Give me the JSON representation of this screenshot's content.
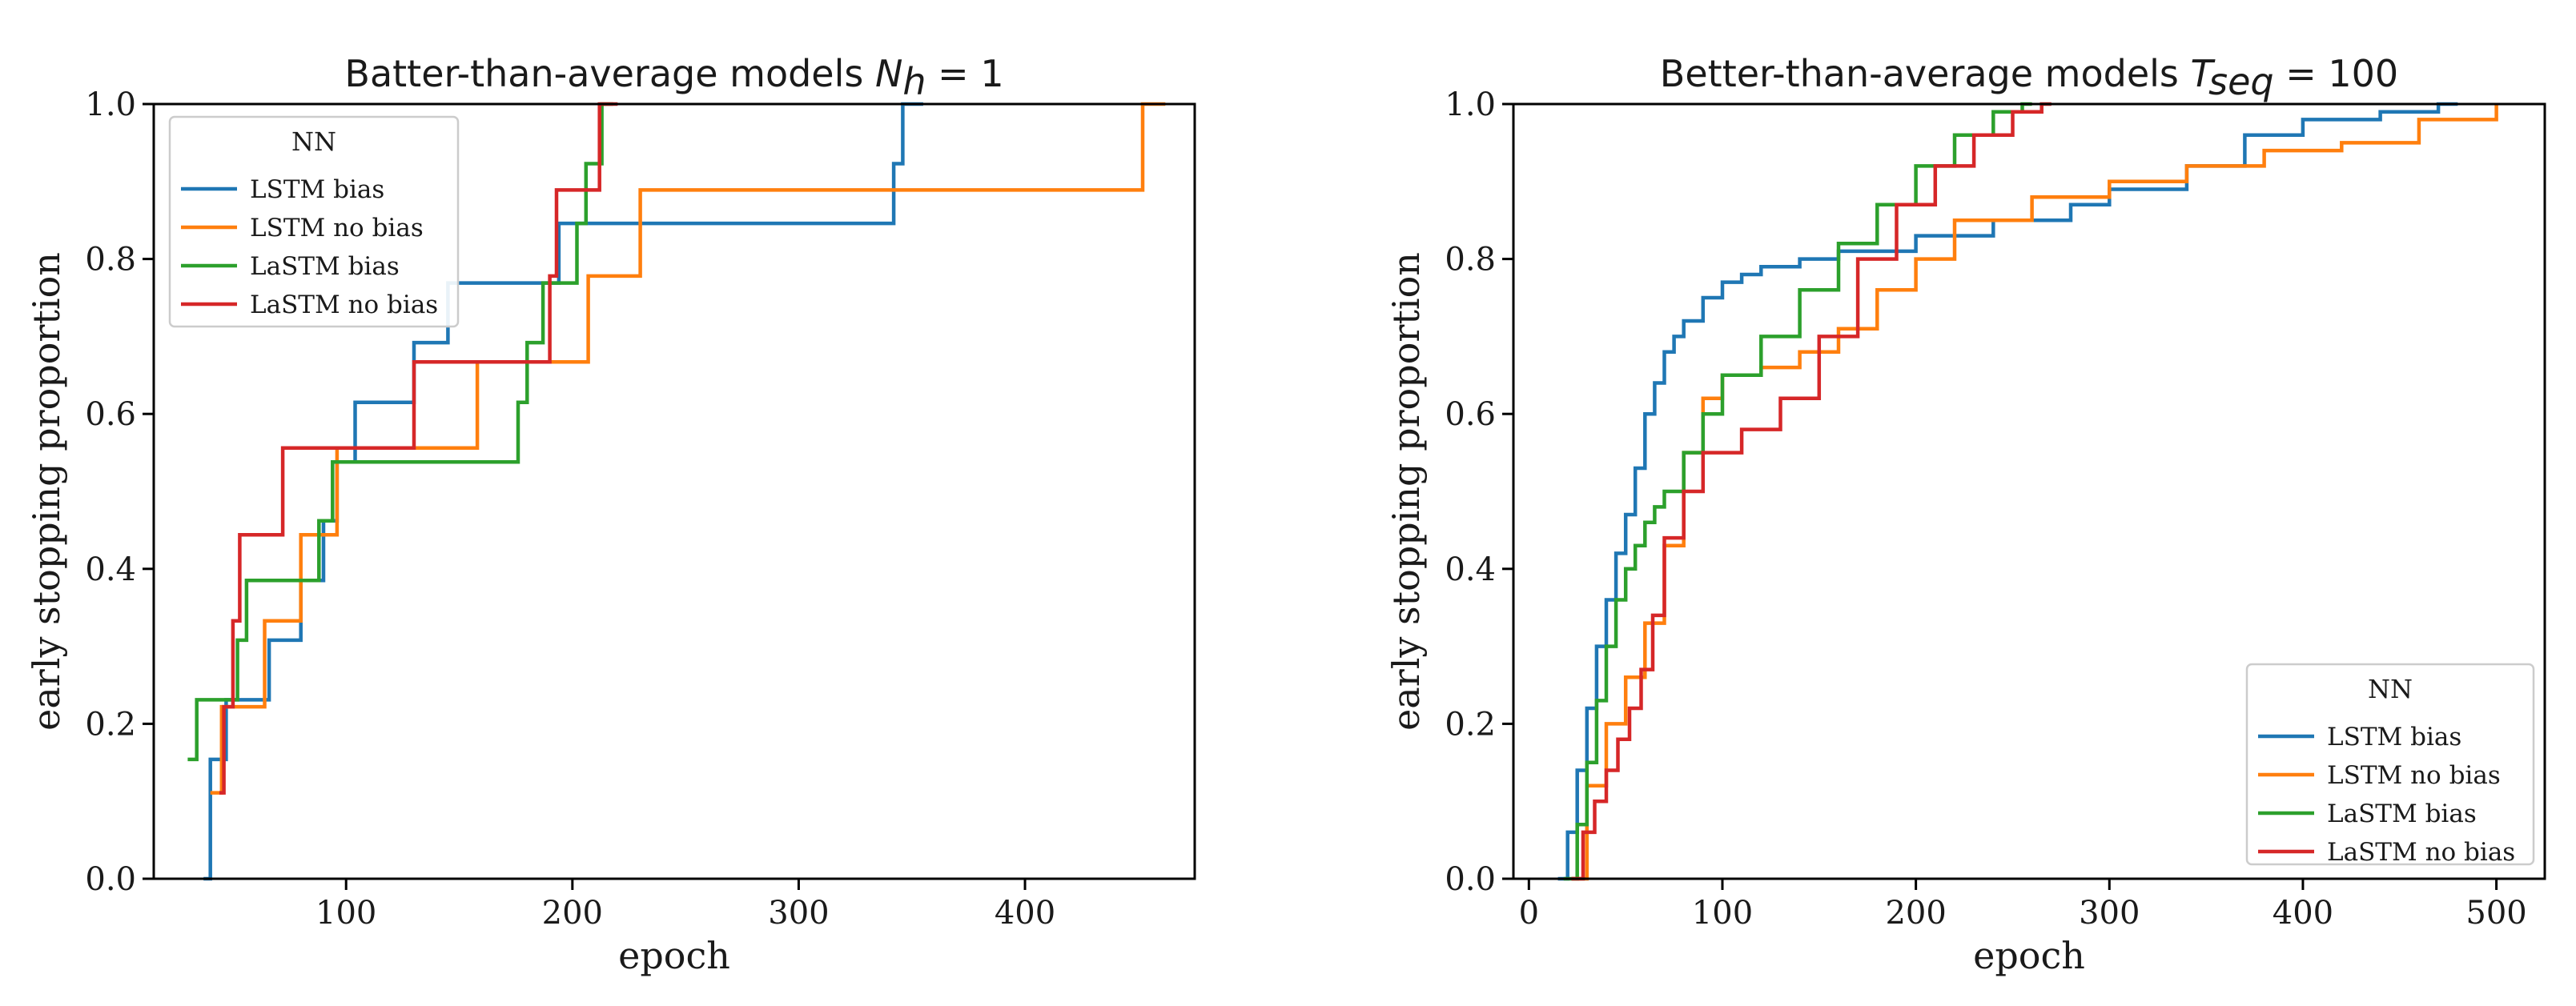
{
  "chart_data": [
    {
      "type": "line",
      "step": true,
      "title": "Batter-than-average models",
      "title_math": {
        "symbol": "N",
        "subscript": "h",
        "rhs": "= 1"
      },
      "xlabel": "epoch",
      "ylabel": "early stopping proportion",
      "xlim": [
        15,
        475
      ],
      "ylim": [
        0,
        1.0
      ],
      "xticks": [
        100,
        200,
        300,
        400
      ],
      "yticks": [
        0.0,
        0.2,
        0.4,
        0.6,
        0.8,
        1.0
      ],
      "legend": {
        "title": "NN",
        "position": "upper-left"
      },
      "series": [
        {
          "name": "LSTM bias",
          "color": "#1f77b4",
          "x": [
            37,
            40,
            47,
            56,
            66,
            80,
            90,
            96,
            104,
            130,
            145,
            172,
            194,
            342,
            346,
            355
          ],
          "y": [
            0.0,
            0.154,
            0.231,
            0.231,
            0.308,
            0.385,
            0.462,
            0.538,
            0.615,
            0.692,
            0.769,
            0.769,
            0.846,
            0.923,
            1.0,
            1.0
          ]
        },
        {
          "name": "LSTM no bias",
          "color": "#ff7f0e",
          "x": [
            40,
            45,
            52,
            64,
            80,
            90,
            96,
            158,
            207,
            230,
            452,
            462
          ],
          "y": [
            0.111,
            0.222,
            0.222,
            0.333,
            0.444,
            0.444,
            0.556,
            0.667,
            0.778,
            0.889,
            1.0,
            1.0
          ]
        },
        {
          "name": "LaSTM bias",
          "color": "#2ca02c",
          "x": [
            30,
            34,
            52,
            56,
            88,
            94,
            176,
            180,
            187,
            202,
            206,
            213,
            218
          ],
          "y": [
            0.154,
            0.231,
            0.308,
            0.385,
            0.462,
            0.538,
            0.615,
            0.692,
            0.769,
            0.846,
            0.923,
            1.0,
            1.0
          ]
        },
        {
          "name": "LaSTM no bias",
          "color": "#d62728",
          "x": [
            44,
            46,
            50,
            53,
            72,
            130,
            190,
            193,
            210,
            212,
            215,
            220
          ],
          "y": [
            0.111,
            0.222,
            0.333,
            0.444,
            0.556,
            0.667,
            0.778,
            0.889,
            0.889,
            1.0,
            1.0,
            1.0
          ]
        }
      ]
    },
    {
      "type": "line",
      "step": true,
      "title": "Better-than-average models",
      "title_math": {
        "symbol": "T",
        "subscript": "seq",
        "rhs": "= 100"
      },
      "xlabel": "epoch",
      "ylabel": "early stopping proportion",
      "xlim": [
        -8,
        525
      ],
      "ylim": [
        0,
        1.0
      ],
      "xticks": [
        0,
        100,
        200,
        300,
        400,
        500
      ],
      "yticks": [
        0.0,
        0.2,
        0.4,
        0.6,
        0.8,
        1.0
      ],
      "legend": {
        "title": "NN",
        "position": "lower-right"
      },
      "series": [
        {
          "name": "LSTM bias",
          "color": "#1f77b4",
          "x": [
            15,
            20,
            25,
            30,
            35,
            40,
            45,
            50,
            55,
            60,
            65,
            70,
            75,
            80,
            90,
            100,
            110,
            120,
            140,
            160,
            200,
            240,
            280,
            300,
            340,
            370,
            400,
            440,
            470,
            480
          ],
          "y": [
            0.0,
            0.06,
            0.14,
            0.22,
            0.3,
            0.36,
            0.42,
            0.47,
            0.53,
            0.6,
            0.64,
            0.68,
            0.7,
            0.72,
            0.75,
            0.77,
            0.78,
            0.79,
            0.8,
            0.81,
            0.83,
            0.85,
            0.87,
            0.89,
            0.92,
            0.96,
            0.98,
            0.99,
            1.0,
            1.0
          ]
        },
        {
          "name": "LSTM no bias",
          "color": "#ff7f0e",
          "x": [
            22,
            30,
            40,
            50,
            60,
            70,
            80,
            90,
            100,
            120,
            140,
            160,
            180,
            200,
            220,
            260,
            300,
            340,
            380,
            420,
            460,
            500
          ],
          "y": [
            0.0,
            0.12,
            0.2,
            0.26,
            0.33,
            0.43,
            0.55,
            0.62,
            0.65,
            0.66,
            0.68,
            0.71,
            0.76,
            0.8,
            0.85,
            0.88,
            0.9,
            0.92,
            0.94,
            0.95,
            0.98,
            1.0
          ]
        },
        {
          "name": "LaSTM bias",
          "color": "#2ca02c",
          "x": [
            18,
            25,
            30,
            35,
            40,
            45,
            50,
            55,
            60,
            65,
            70,
            80,
            90,
            100,
            120,
            140,
            160,
            180,
            200,
            220,
            240,
            255,
            260
          ],
          "y": [
            0.0,
            0.07,
            0.15,
            0.23,
            0.3,
            0.36,
            0.4,
            0.43,
            0.46,
            0.48,
            0.5,
            0.55,
            0.6,
            0.65,
            0.7,
            0.76,
            0.82,
            0.87,
            0.92,
            0.96,
            0.99,
            1.0,
            1.0
          ]
        },
        {
          "name": "LaSTM no bias",
          "color": "#d62728",
          "x": [
            22,
            28,
            34,
            40,
            46,
            52,
            58,
            64,
            70,
            80,
            90,
            110,
            130,
            150,
            170,
            190,
            210,
            230,
            250,
            265,
            270
          ],
          "y": [
            0.0,
            0.06,
            0.1,
            0.14,
            0.18,
            0.22,
            0.27,
            0.34,
            0.44,
            0.5,
            0.55,
            0.58,
            0.62,
            0.7,
            0.8,
            0.87,
            0.92,
            0.96,
            0.99,
            1.0,
            1.0
          ]
        }
      ]
    }
  ]
}
